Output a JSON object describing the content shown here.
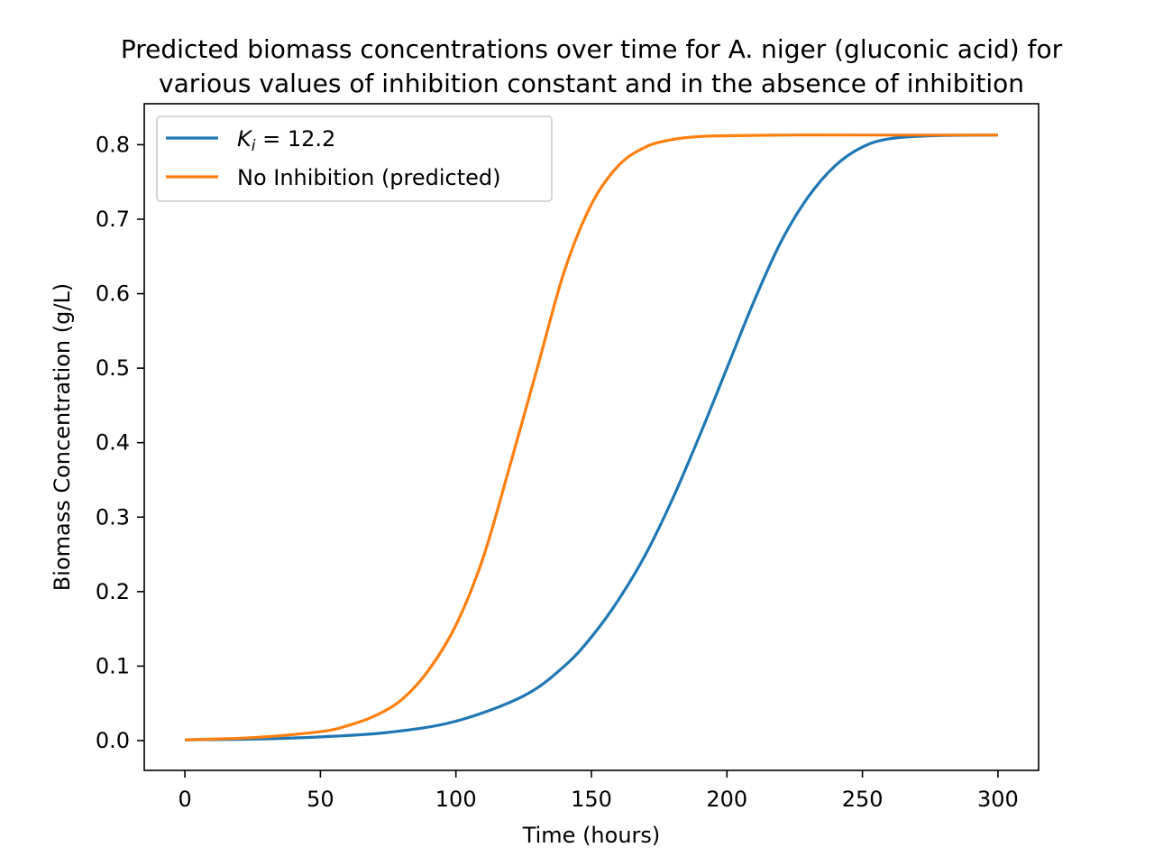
{
  "chart_data": {
    "type": "line",
    "title": [
      "Predicted biomass concentrations over time for A. niger (gluconic acid) for",
      "various values of inhibition constant and in the absence of inhibition"
    ],
    "xlabel": "Time (hours)",
    "ylabel": "Biomass Concentration (g/L)",
    "xlim": [
      -15,
      315
    ],
    "ylim": [
      -0.04,
      0.855
    ],
    "xticks": [
      0,
      50,
      100,
      150,
      200,
      250,
      300
    ],
    "xtick_labels": [
      "0",
      "50",
      "100",
      "150",
      "200",
      "250",
      "300"
    ],
    "yticks": [
      0.0,
      0.1,
      0.2,
      0.3,
      0.4,
      0.5,
      0.6,
      0.7,
      0.8
    ],
    "ytick_labels": [
      "0.0",
      "0.1",
      "0.2",
      "0.3",
      "0.4",
      "0.5",
      "0.6",
      "0.7",
      "0.8"
    ],
    "grid": false,
    "legend_position": "upper-left",
    "series": [
      {
        "legend_main": "K",
        "legend_sub": "i",
        "legend_rest": " = 12.2",
        "color": "#1f77b4",
        "x": [
          0,
          25,
          50,
          75,
          100,
          125,
          140,
          150,
          160,
          170,
          180,
          190,
          200,
          210,
          220,
          230,
          240,
          250,
          260,
          275,
          300
        ],
        "y": [
          0.001,
          0.002,
          0.005,
          0.011,
          0.026,
          0.06,
          0.1,
          0.139,
          0.189,
          0.25,
          0.325,
          0.41,
          0.5,
          0.59,
          0.67,
          0.73,
          0.772,
          0.797,
          0.808,
          0.812,
          0.813
        ]
      },
      {
        "legend_main": "No Inhibition (predicted)",
        "legend_sub": "",
        "legend_rest": "",
        "color": "#ff7f0e",
        "x": [
          0,
          25,
          50,
          60,
          70,
          80,
          90,
          100,
          110,
          120,
          130,
          140,
          150,
          160,
          170,
          180,
          190,
          200,
          225,
          250,
          300
        ],
        "y": [
          0.001,
          0.004,
          0.012,
          0.02,
          0.033,
          0.055,
          0.095,
          0.155,
          0.245,
          0.37,
          0.5,
          0.63,
          0.72,
          0.772,
          0.797,
          0.807,
          0.811,
          0.812,
          0.813,
          0.813,
          0.813
        ]
      }
    ]
  }
}
